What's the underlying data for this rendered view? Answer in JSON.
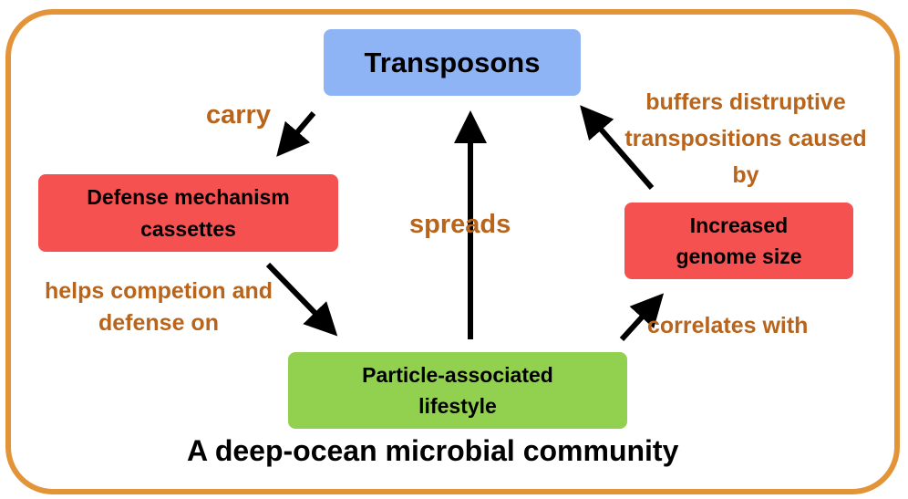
{
  "nodes": {
    "transposons": "Transposons",
    "defense": "Defense mechanism cassettes",
    "genome": "Increased genome size",
    "lifestyle": "Particle-associated lifestyle"
  },
  "edges": {
    "carry": "carry",
    "helps": "helps competion and defense on",
    "spreads": "spreads",
    "correlates": "correlates with",
    "buffers": "buffers distruptive transpositions caused by"
  },
  "caption": "A deep-ocean microbial community",
  "colors": {
    "border": "#e39338",
    "transposons_fill": "#8fb4f6",
    "red_fill": "#f55151",
    "green_fill": "#92d050",
    "edge_label": "#b8641b"
  }
}
